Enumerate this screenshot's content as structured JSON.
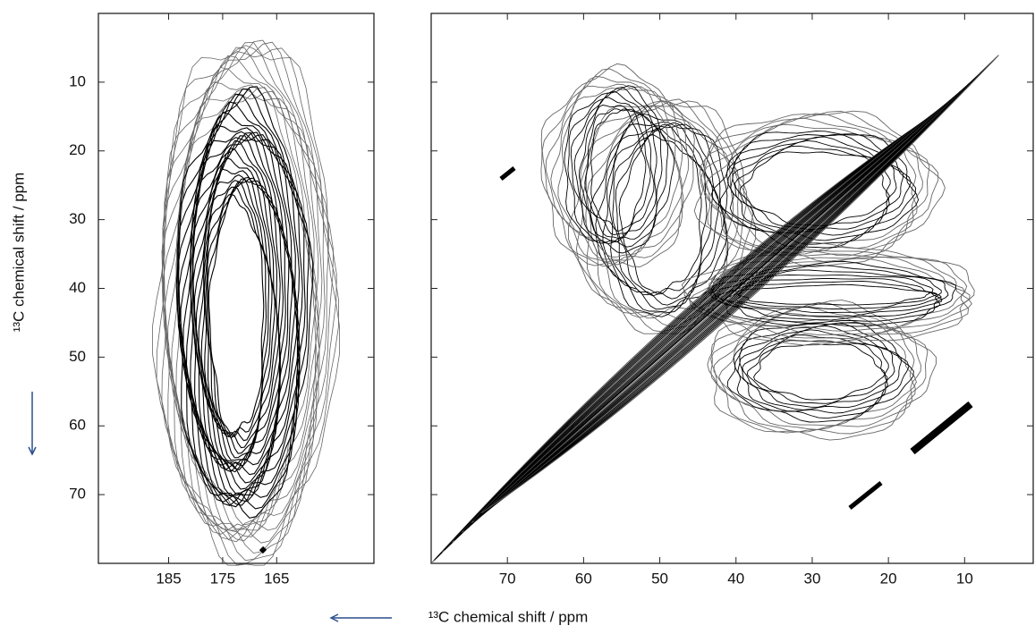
{
  "chart_data": [
    {
      "type": "contour",
      "xlim": [
        198,
        147
      ],
      "ylim": [
        0,
        80
      ],
      "xticks": [
        185,
        175,
        165
      ],
      "yticks": [
        10,
        20,
        30,
        40,
        50,
        60,
        70
      ],
      "ylabel": "¹³C chemical shift / ppm"
    },
    {
      "type": "contour",
      "xlim": [
        80,
        1
      ],
      "ylim": [
        0,
        80
      ],
      "xticks": [
        70,
        60,
        50,
        40,
        30,
        20,
        10
      ],
      "xlabel": "¹³C chemical shift / ppm"
    }
  ]
}
